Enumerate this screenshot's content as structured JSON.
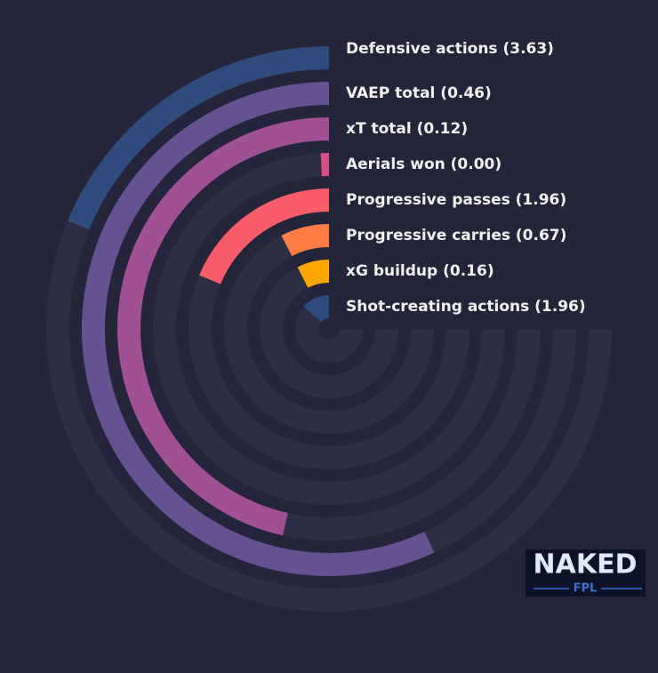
{
  "chart_data": {
    "type": "radial-bar",
    "categories": [
      "Defensive actions (3.63)",
      "VAEP total (0.46)",
      "xT total (0.12)",
      "Aerials won (0.00)",
      "Progressive passes (1.96)",
      "Progressive carries (0.67)",
      "xG buildup (0.16)",
      "Shot-creating actions (1.96)"
    ],
    "values": [
      25,
      76,
      62,
      1,
      25,
      10,
      10,
      18
    ],
    "colors": [
      "#2f4b7c",
      "#665191",
      "#a05195",
      "#d45087",
      "#f95d6a",
      "#ff7c43",
      "#ffa600",
      "#2f4b7c"
    ],
    "ylim": [
      0,
      100
    ]
  },
  "logo": {
    "title": "NAKED",
    "subtitle": "FPL"
  }
}
